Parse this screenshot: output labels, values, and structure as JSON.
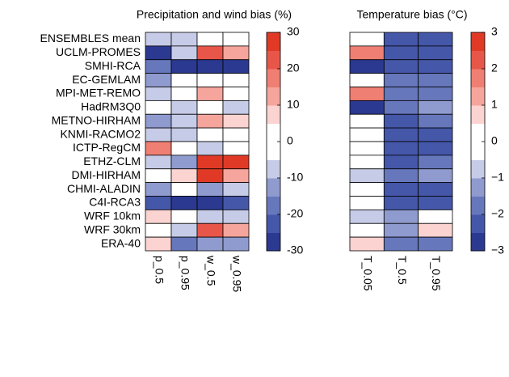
{
  "chart_data": [
    {
      "type": "heatmap",
      "title": "Precipitation and wind bias (%)",
      "categories": [
        "ENSEMBLES mean",
        "UCLM-PROMES",
        "SMHI-RCA",
        "EC-GEMLAM",
        "MPI-MET-REMO",
        "HadRM3Q0",
        "METNO-HIRHAM",
        "KNMI-RACMO2",
        "ICTP-RegCM",
        "ETHZ-CLM",
        "DMI-HIRHAM",
        "CHMI-ALADIN",
        "C4I-RCA3",
        "WRF 10km",
        "WRF 30km",
        "ERA-40"
      ],
      "columns": [
        "p_0.5",
        "p_0.95",
        "w_0.5",
        "w_0.95"
      ],
      "values": [
        [
          -7,
          -7,
          0,
          0
        ],
        [
          -28,
          -7,
          22,
          13
        ],
        [
          -18,
          -27,
          -27,
          -27
        ],
        [
          -12,
          0,
          0,
          0
        ],
        [
          -7,
          0,
          12,
          0
        ],
        [
          0,
          -7,
          0,
          -7
        ],
        [
          -12,
          -7,
          12,
          7
        ],
        [
          -7,
          -7,
          0,
          0
        ],
        [
          17,
          0,
          -7,
          0
        ],
        [
          -7,
          -12,
          28,
          27
        ],
        [
          0,
          7,
          27,
          13
        ],
        [
          -12,
          0,
          -12,
          -7
        ],
        [
          -22,
          -27,
          -27,
          -22
        ],
        [
          7,
          0,
          -7,
          -7
        ],
        [
          0,
          -7,
          22,
          13
        ],
        [
          7,
          -17,
          -12,
          -12
        ]
      ],
      "zlim": [
        -30,
        30
      ],
      "zticks": [
        -30,
        -20,
        -10,
        0,
        10,
        20,
        30
      ],
      "colors": [
        "#2b3990",
        "#4557a8",
        "#6777bc",
        "#8f9bce",
        "#c6cbe7",
        "#ffffff",
        "#ffffff",
        "#fbd3d0",
        "#f5a59c",
        "#f07f73",
        "#e8564a",
        "#e03a26"
      ]
    },
    {
      "type": "heatmap",
      "title": "Temperature bias (°C)",
      "columns": [
        "T_0.05",
        "T_0.5",
        "T_0.95"
      ],
      "values": [
        [
          0,
          -2.3,
          -2.3
        ],
        [
          1.7,
          -2.3,
          -2.3
        ],
        [
          -2.7,
          -2.3,
          -2.3
        ],
        [
          0,
          -1.7,
          -1.7
        ],
        [
          1.7,
          -1.7,
          -1.7
        ],
        [
          -2.7,
          -1.7,
          -1.2
        ],
        [
          0,
          -2.3,
          -1.7
        ],
        [
          0,
          -2.3,
          -2.3
        ],
        [
          0,
          -2.3,
          -2.3
        ],
        [
          0,
          -2.3,
          -1.7
        ],
        [
          -0.7,
          -1.7,
          -1.2
        ],
        [
          0,
          -2.3,
          -2.3
        ],
        [
          0,
          -2.3,
          -2.3
        ],
        [
          -0.7,
          -1.2,
          0
        ],
        [
          0,
          -1.2,
          0.7
        ],
        [
          0.7,
          -1.7,
          -1.7
        ]
      ],
      "zlim": [
        -3,
        3
      ],
      "zticks": [
        {
          "value": -3,
          "label": "−3"
        },
        {
          "value": -2,
          "label": "−2"
        },
        {
          "value": -1,
          "label": "−1"
        },
        0,
        1,
        2,
        3
      ],
      "colors": [
        "#2b3990",
        "#4557a8",
        "#6777bc",
        "#8f9bce",
        "#c6cbe7",
        "#ffffff",
        "#ffffff",
        "#fbd3d0",
        "#f5a59c",
        "#f07f73",
        "#e8564a",
        "#e03a26"
      ]
    }
  ]
}
